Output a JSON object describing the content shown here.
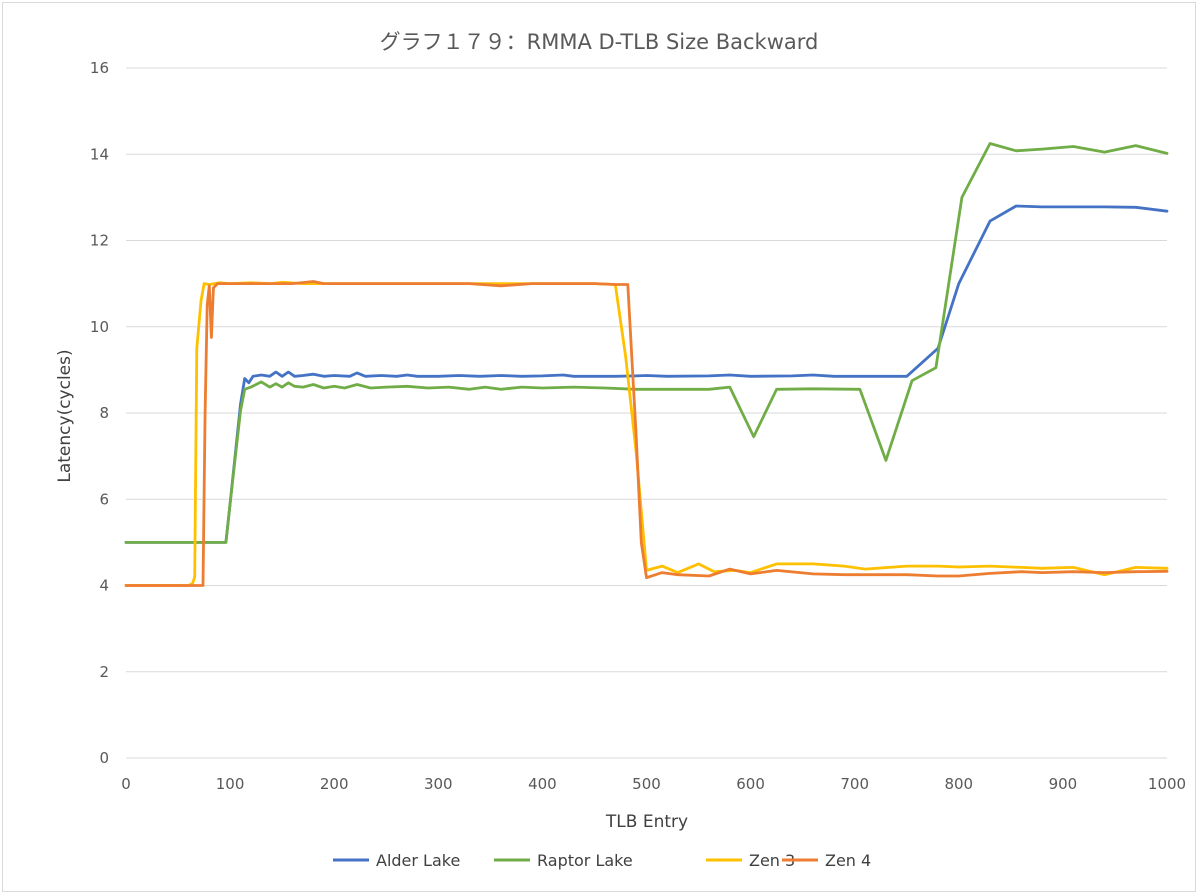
{
  "chart_data": {
    "type": "line",
    "title": "グラフ１７９：RMMA D-TLB Size Backward",
    "xlabel": "TLB Entry",
    "ylabel": "Latency(cycles)",
    "xlim": [
      0,
      1000
    ],
    "ylim": [
      0,
      16
    ],
    "xticks": [
      0,
      100,
      200,
      300,
      400,
      500,
      600,
      700,
      800,
      900,
      1000
    ],
    "yticks": [
      0,
      2,
      4,
      6,
      8,
      10,
      12,
      14,
      16
    ],
    "grid": "horizontal",
    "legend_position": "bottom",
    "series": [
      {
        "name": "Alder Lake",
        "color": "#4472c4",
        "points": [
          [
            0,
            5
          ],
          [
            96,
            5
          ],
          [
            100,
            5.9
          ],
          [
            110,
            8.2
          ],
          [
            114,
            8.8
          ],
          [
            118,
            8.7
          ],
          [
            122,
            8.85
          ],
          [
            130,
            8.88
          ],
          [
            138,
            8.85
          ],
          [
            144,
            8.95
          ],
          [
            150,
            8.85
          ],
          [
            156,
            8.95
          ],
          [
            162,
            8.85
          ],
          [
            170,
            8.87
          ],
          [
            180,
            8.9
          ],
          [
            190,
            8.85
          ],
          [
            200,
            8.87
          ],
          [
            215,
            8.85
          ],
          [
            222,
            8.93
          ],
          [
            230,
            8.85
          ],
          [
            245,
            8.87
          ],
          [
            260,
            8.85
          ],
          [
            270,
            8.88
          ],
          [
            280,
            8.85
          ],
          [
            300,
            8.85
          ],
          [
            320,
            8.87
          ],
          [
            340,
            8.85
          ],
          [
            360,
            8.87
          ],
          [
            380,
            8.85
          ],
          [
            400,
            8.86
          ],
          [
            420,
            8.88
          ],
          [
            430,
            8.85
          ],
          [
            450,
            8.85
          ],
          [
            470,
            8.85
          ],
          [
            490,
            8.86
          ],
          [
            500,
            8.87
          ],
          [
            520,
            8.85
          ],
          [
            560,
            8.86
          ],
          [
            580,
            8.88
          ],
          [
            600,
            8.85
          ],
          [
            640,
            8.86
          ],
          [
            660,
            8.88
          ],
          [
            680,
            8.85
          ],
          [
            710,
            8.85
          ],
          [
            750,
            8.85
          ],
          [
            780,
            9.5
          ],
          [
            800,
            11
          ],
          [
            830,
            12.45
          ],
          [
            855,
            12.8
          ],
          [
            880,
            12.78
          ],
          [
            910,
            12.78
          ],
          [
            940,
            12.78
          ],
          [
            970,
            12.77
          ],
          [
            1000,
            12.68
          ]
        ]
      },
      {
        "name": "Raptor Lake",
        "color": "#70ad47",
        "points": [
          [
            0,
            5
          ],
          [
            96,
            5
          ],
          [
            100,
            5.9
          ],
          [
            110,
            8.05
          ],
          [
            114,
            8.55
          ],
          [
            120,
            8.6
          ],
          [
            130,
            8.72
          ],
          [
            138,
            8.6
          ],
          [
            144,
            8.68
          ],
          [
            150,
            8.6
          ],
          [
            156,
            8.7
          ],
          [
            162,
            8.62
          ],
          [
            170,
            8.6
          ],
          [
            180,
            8.66
          ],
          [
            190,
            8.58
          ],
          [
            200,
            8.62
          ],
          [
            210,
            8.58
          ],
          [
            222,
            8.66
          ],
          [
            235,
            8.58
          ],
          [
            250,
            8.6
          ],
          [
            270,
            8.62
          ],
          [
            290,
            8.58
          ],
          [
            310,
            8.6
          ],
          [
            330,
            8.55
          ],
          [
            345,
            8.6
          ],
          [
            360,
            8.55
          ],
          [
            380,
            8.6
          ],
          [
            400,
            8.58
          ],
          [
            430,
            8.6
          ],
          [
            460,
            8.58
          ],
          [
            490,
            8.55
          ],
          [
            500,
            8.55
          ],
          [
            560,
            8.55
          ],
          [
            580,
            8.6
          ],
          [
            603,
            7.45
          ],
          [
            625,
            8.55
          ],
          [
            660,
            8.56
          ],
          [
            705,
            8.55
          ],
          [
            730,
            6.9
          ],
          [
            755,
            8.75
          ],
          [
            778,
            9.05
          ],
          [
            803,
            13
          ],
          [
            830,
            14.25
          ],
          [
            855,
            14.08
          ],
          [
            880,
            14.12
          ],
          [
            910,
            14.18
          ],
          [
            940,
            14.05
          ],
          [
            970,
            14.2
          ],
          [
            1000,
            14.02
          ]
        ]
      },
      {
        "name": "Zen 3",
        "color": "#ffc000",
        "points": [
          [
            0,
            4
          ],
          [
            60,
            4
          ],
          [
            64,
            4.05
          ],
          [
            66,
            4.2
          ],
          [
            68,
            9.5
          ],
          [
            72,
            10.6
          ],
          [
            75,
            11
          ],
          [
            80,
            10.98
          ],
          [
            90,
            11.02
          ],
          [
            100,
            11
          ],
          [
            120,
            11.02
          ],
          [
            140,
            11
          ],
          [
            150,
            11.03
          ],
          [
            170,
            11
          ],
          [
            200,
            11
          ],
          [
            250,
            11
          ],
          [
            300,
            11
          ],
          [
            350,
            11
          ],
          [
            400,
            11
          ],
          [
            450,
            11
          ],
          [
            470,
            10.98
          ],
          [
            480,
            9.3
          ],
          [
            490,
            7.1
          ],
          [
            500,
            4.35
          ],
          [
            515,
            4.45
          ],
          [
            530,
            4.3
          ],
          [
            550,
            4.5
          ],
          [
            565,
            4.32
          ],
          [
            585,
            4.35
          ],
          [
            600,
            4.3
          ],
          [
            625,
            4.5
          ],
          [
            660,
            4.5
          ],
          [
            690,
            4.45
          ],
          [
            710,
            4.38
          ],
          [
            750,
            4.45
          ],
          [
            780,
            4.45
          ],
          [
            800,
            4.43
          ],
          [
            830,
            4.45
          ],
          [
            860,
            4.42
          ],
          [
            880,
            4.4
          ],
          [
            910,
            4.42
          ],
          [
            940,
            4.25
          ],
          [
            970,
            4.42
          ],
          [
            1000,
            4.4
          ]
        ]
      },
      {
        "name": "Zen 4",
        "color": "#ed7d31",
        "points": [
          [
            0,
            4
          ],
          [
            74,
            4
          ],
          [
            76,
            8
          ],
          [
            78,
            10.5
          ],
          [
            80,
            10.95
          ],
          [
            82,
            9.75
          ],
          [
            84,
            10.9
          ],
          [
            88,
            11
          ],
          [
            100,
            11
          ],
          [
            130,
            11
          ],
          [
            160,
            11
          ],
          [
            180,
            11.05
          ],
          [
            190,
            11
          ],
          [
            250,
            11
          ],
          [
            300,
            11
          ],
          [
            330,
            11
          ],
          [
            360,
            10.95
          ],
          [
            390,
            11
          ],
          [
            420,
            11
          ],
          [
            450,
            11
          ],
          [
            470,
            10.98
          ],
          [
            482,
            10.98
          ],
          [
            490,
            7.5
          ],
          [
            495,
            5
          ],
          [
            500,
            4.18
          ],
          [
            515,
            4.3
          ],
          [
            530,
            4.25
          ],
          [
            560,
            4.22
          ],
          [
            580,
            4.38
          ],
          [
            600,
            4.27
          ],
          [
            625,
            4.35
          ],
          [
            660,
            4.27
          ],
          [
            690,
            4.25
          ],
          [
            710,
            4.25
          ],
          [
            750,
            4.25
          ],
          [
            780,
            4.22
          ],
          [
            800,
            4.22
          ],
          [
            830,
            4.28
          ],
          [
            860,
            4.32
          ],
          [
            880,
            4.3
          ],
          [
            910,
            4.32
          ],
          [
            940,
            4.3
          ],
          [
            970,
            4.32
          ],
          [
            1000,
            4.33
          ]
        ]
      }
    ]
  }
}
